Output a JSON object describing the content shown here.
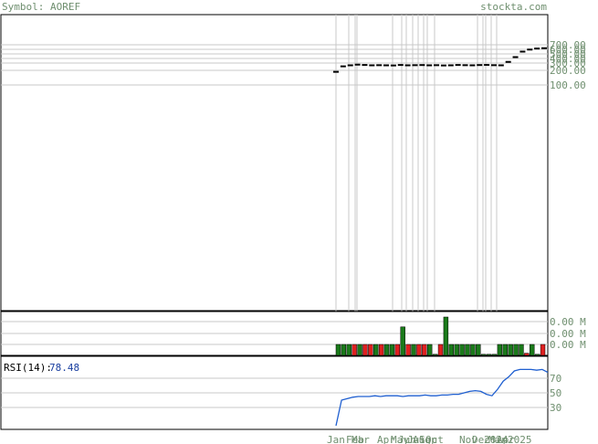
{
  "header": {
    "symbol_text": "Symbol: AOREF",
    "site": "stockta.com"
  },
  "colors": {
    "grid": "#c8c8c8",
    "frame": "#000000",
    "up": "#1a7a1a",
    "down": "#e02020",
    "rsi_line": "#1f5fd0",
    "label": "#6f8f6f"
  },
  "chart_data": [
    {
      "type": "line",
      "panel": "price",
      "y_ticks": [
        "700.00",
        "600.00",
        "500.00",
        "400.00",
        "300.00",
        "200.00",
        "100.00"
      ],
      "grid": true,
      "x_labels": [
        "Jan",
        "Feb",
        "Mar",
        "Apr",
        "May",
        "Jun",
        "Jul",
        "Aug",
        "Sep",
        "Oct",
        "Nov",
        "Dec",
        "2024",
        "Mar",
        "Apr",
        "2025"
      ],
      "values": [
        205,
        285,
        300,
        310,
        305,
        300,
        302,
        300,
        298,
        305,
        300,
        302,
        304,
        300,
        302,
        298,
        300,
        305,
        302,
        300,
        304,
        306,
        302,
        300,
        350,
        420,
        500,
        530,
        545,
        550
      ]
    },
    {
      "type": "bar",
      "panel": "volume",
      "y_ticks": [
        "0.00 M",
        "0.00 M",
        "0.00 M"
      ],
      "bars": [
        {
          "v": 1,
          "up": true
        },
        {
          "v": 1,
          "up": true
        },
        {
          "v": 1,
          "up": true
        },
        {
          "v": 1,
          "up": false
        },
        {
          "v": 1,
          "up": true
        },
        {
          "v": 1,
          "up": false
        },
        {
          "v": 1,
          "up": false
        },
        {
          "v": 1,
          "up": true
        },
        {
          "v": 1,
          "up": false
        },
        {
          "v": 1,
          "up": true
        },
        {
          "v": 1,
          "up": true
        },
        {
          "v": 1,
          "up": false
        },
        {
          "v": 2.6,
          "up": true
        },
        {
          "v": 1,
          "up": false
        },
        {
          "v": 1,
          "up": true
        },
        {
          "v": 1,
          "up": false
        },
        {
          "v": 1,
          "up": false
        },
        {
          "v": 1,
          "up": true
        },
        {
          "v": 0.1,
          "up": true
        },
        {
          "v": 1,
          "up": false
        },
        {
          "v": 3.5,
          "up": true
        },
        {
          "v": 1,
          "up": true
        },
        {
          "v": 1,
          "up": true
        },
        {
          "v": 1,
          "up": true
        },
        {
          "v": 1,
          "up": true
        },
        {
          "v": 1,
          "up": true
        },
        {
          "v": 1,
          "up": true
        },
        {
          "v": 0.1,
          "up": true
        },
        {
          "v": 0.1,
          "up": true
        },
        {
          "v": 0.1,
          "up": true
        },
        {
          "v": 1,
          "up": true
        },
        {
          "v": 1,
          "up": true
        },
        {
          "v": 1,
          "up": true
        },
        {
          "v": 1,
          "up": true
        },
        {
          "v": 1,
          "up": true
        },
        {
          "v": 0.2,
          "up": false
        },
        {
          "v": 1,
          "up": true
        },
        {
          "v": 0.1,
          "up": true
        },
        {
          "v": 1,
          "up": false
        }
      ]
    },
    {
      "type": "line",
      "panel": "rsi",
      "label": "RSI(14):",
      "value_text": "78.48",
      "y_ticks": [
        "70",
        "50",
        "30"
      ],
      "ylim": [
        0,
        100
      ],
      "values": [
        5,
        40,
        42,
        44,
        45,
        45,
        45,
        46,
        45,
        46,
        46,
        46,
        45,
        46,
        46,
        46,
        47,
        46,
        46,
        47,
        47,
        48,
        48,
        50,
        52,
        53,
        52,
        48,
        46,
        55,
        66,
        72,
        80,
        82,
        82,
        82,
        81,
        82,
        78
      ]
    }
  ]
}
